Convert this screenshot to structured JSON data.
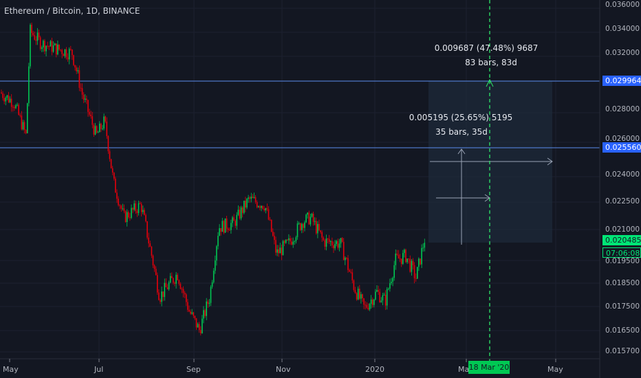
{
  "header": {
    "title": "Ethereum / Bitcoin, 1D, BINANCE"
  },
  "colors": {
    "background": "#131722",
    "up": "#26a69a",
    "up_bright": "#00c853",
    "down": "#ef5350",
    "down_bright": "#e8000b",
    "hline": "#2962ff",
    "label_blue": "#2962ff",
    "label_green": "#00e676",
    "vline": "#00c853"
  },
  "y_axis": {
    "ticks": [
      "0.036000",
      "0.034000",
      "0.032000",
      "0.028000",
      "0.026000",
      "0.024000",
      "0.022500",
      "0.021000",
      "0.019500",
      "0.018500",
      "0.017500",
      "0.016500",
      "0.015700"
    ]
  },
  "x_axis": {
    "ticks": [
      "May",
      "Jul",
      "Sep",
      "Nov",
      "2020",
      "Mar",
      "May"
    ]
  },
  "price_labels": {
    "line_high": "0.029964",
    "line_mid": "0.025560",
    "current": "0.020485",
    "countdown": "07:06:08"
  },
  "time_marker": "18 Mar '20",
  "annotations": {
    "big_measure_line1": "0.009687 (47.48%) 9687",
    "big_measure_line2": "83 bars, 83d",
    "small_measure_line1": "0.005195 (25.65%) 5195",
    "small_measure_line2": "35 bars, 35d"
  },
  "chart_data": {
    "type": "candlestick",
    "series": "Ethereum / Bitcoin",
    "horizontal_levels": [
      0.029964,
      0.02556
    ],
    "current_price": 0.020485,
    "approx_path": [
      {
        "date": "May",
        "close": 0.0292
      },
      {
        "date": "mid May",
        "close": 0.0335
      },
      {
        "date": "Jun",
        "close": 0.032
      },
      {
        "date": "Jul",
        "close": 0.0262
      },
      {
        "date": "Aug",
        "close": 0.0195
      },
      {
        "date": "Sep",
        "close": 0.0165
      },
      {
        "date": "Oct",
        "close": 0.021
      },
      {
        "date": "mid Oct",
        "close": 0.0225
      },
      {
        "date": "Nov",
        "close": 0.02
      },
      {
        "date": "Dec",
        "close": 0.02
      },
      {
        "date": "2020",
        "close": 0.0174
      },
      {
        "date": "Feb",
        "close": 0.0205
      }
    ]
  }
}
